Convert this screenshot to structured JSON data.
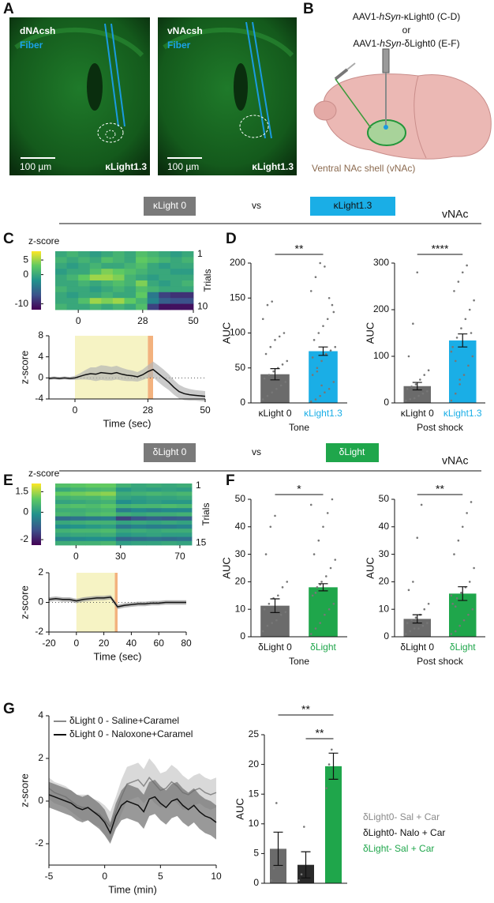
{
  "panel_labels": [
    "A",
    "B",
    "C",
    "D",
    "E",
    "F",
    "G"
  ],
  "panel_a": [
    {
      "region": "dNAcsh",
      "fiber": "Fiber",
      "scale_bar": "100 µm",
      "sensor": "κLight1.3"
    },
    {
      "region": "vNAcsh",
      "fiber": "Fiber",
      "scale_bar": "100 µm",
      "sensor": "κLight1.3"
    }
  ],
  "panel_b": {
    "virus_1": [
      "AAV1-",
      "hSyn",
      "-κLight0 (C-D)"
    ],
    "or": "or",
    "virus_2": [
      "AAV1-",
      "hSyn",
      "-δLight0 (E-F)"
    ],
    "target": "Ventral NAc shell (vNAc)"
  },
  "comparisons": [
    {
      "control": "κLight 0",
      "vs": "vs",
      "sensor": "κLight1.3",
      "region": "vNAc"
    },
    {
      "control": "δLight 0",
      "vs": "vs",
      "sensor": "δLight",
      "region": "vNAc"
    }
  ],
  "chart_data": [
    {
      "type": "heatmap",
      "colorbar_label": "z-score",
      "clim": [
        -12,
        8
      ],
      "cticks": [
        5,
        0,
        -10
      ],
      "xlim": [
        -10,
        50
      ],
      "xticks": [
        0,
        28,
        50
      ],
      "ylim": [
        1,
        10
      ],
      "yticks": [
        1,
        10
      ],
      "ylabel": "Trials",
      "values": [
        [
          0,
          1,
          0,
          -1,
          0,
          1,
          0,
          2,
          1,
          0,
          -1,
          0
        ],
        [
          1,
          0,
          1,
          0,
          2,
          1,
          0,
          3,
          2,
          1,
          0,
          1
        ],
        [
          0,
          -1,
          0,
          1,
          0,
          0,
          1,
          2,
          0,
          -1,
          0,
          0
        ],
        [
          -1,
          0,
          0,
          2,
          4,
          3,
          2,
          1,
          0,
          0,
          -1,
          -1
        ],
        [
          0,
          1,
          3,
          5,
          5,
          4,
          1,
          0,
          -1,
          0,
          0,
          0
        ],
        [
          0,
          0,
          1,
          0,
          1,
          2,
          1,
          4,
          0,
          -1,
          0,
          1
        ],
        [
          1,
          0,
          0,
          -1,
          0,
          1,
          0,
          2,
          1,
          0,
          0,
          0
        ],
        [
          0,
          -1,
          0,
          0,
          1,
          0,
          0,
          3,
          -4,
          -8,
          -9,
          -9
        ],
        [
          0,
          0,
          2,
          5,
          4,
          5,
          3,
          1,
          -3,
          -6,
          -7,
          -7
        ],
        [
          1,
          0,
          0,
          1,
          0,
          1,
          0,
          2,
          -8,
          -11,
          -11,
          -11
        ]
      ]
    },
    {
      "type": "line",
      "xlabel": "Time (sec)",
      "ylabel": "z-score",
      "xlim": [
        -10,
        50
      ],
      "xticks": [
        0,
        28,
        50
      ],
      "ylim": [
        -4,
        8
      ],
      "yticks": [
        -4,
        0,
        4,
        8
      ],
      "zero_line": true,
      "spans": [
        {
          "range": [
            0,
            28
          ],
          "color": "#f6f3c4"
        },
        {
          "range": [
            28,
            30
          ],
          "color": "#f3b27e"
        }
      ],
      "x": [
        -10,
        -8,
        -6,
        -4,
        -2,
        0,
        2,
        4,
        6,
        8,
        10,
        12,
        14,
        16,
        18,
        20,
        22,
        24,
        26,
        28,
        30,
        32,
        34,
        36,
        38,
        40,
        42,
        44,
        46,
        48,
        50
      ],
      "series": [
        {
          "color": "#111111",
          "band_color": "#b5b5b5",
          "values": [
            -0.1,
            0,
            -0.1,
            0,
            -0.1,
            0,
            0.3,
            0.6,
            0.8,
            0.7,
            1.0,
            0.9,
            0.8,
            1.0,
            0.7,
            0.5,
            0.4,
            0.2,
            0.6,
            1.2,
            1.6,
            0.8,
            0.0,
            -0.8,
            -1.8,
            -2.6,
            -3.0,
            -3.2,
            -3.3,
            -3.4,
            -3.5
          ],
          "errors": [
            0.3,
            0.3,
            0.3,
            0.3,
            0.3,
            0.4,
            0.6,
            0.9,
            1.2,
            1.3,
            1.4,
            1.4,
            1.3,
            1.3,
            1.2,
            1.1,
            1.0,
            0.9,
            1.0,
            1.2,
            1.5,
            1.6,
            1.6,
            1.5,
            1.4,
            1.3,
            1.2,
            1.1,
            1.0,
            1.0,
            1.0
          ]
        }
      ]
    },
    {
      "type": "bar",
      "ylabel": "AUC",
      "xlabel": "Tone",
      "ylim": [
        0,
        200
      ],
      "yticks": [
        0,
        50,
        100,
        150,
        200
      ],
      "categories": [
        "κLight 0",
        "κLight1.3"
      ],
      "category_colors": [
        "#111111",
        "#1aaee6"
      ],
      "colors": [
        "#6b6b6b",
        "#1aaee6"
      ],
      "values": [
        41,
        74
      ],
      "errors": [
        8,
        6
      ],
      "points": [
        [
          5,
          10,
          15,
          20,
          25,
          30,
          35,
          40,
          45,
          50,
          55,
          60,
          70,
          80,
          90,
          95,
          100,
          120,
          140,
          145
        ],
        [
          2,
          5,
          10,
          15,
          20,
          30,
          40,
          50,
          60,
          70,
          75,
          80,
          90,
          100,
          110,
          120,
          140,
          160,
          180,
          200,
          195,
          150,
          130,
          65,
          45,
          25
        ]
      ],
      "significance": [
        {
          "from": 0,
          "to": 1,
          "label": "**"
        }
      ]
    },
    {
      "type": "bar",
      "ylabel": "AUC",
      "xlabel": "Post shock",
      "ylim": [
        0,
        300
      ],
      "yticks": [
        0,
        100,
        200,
        300
      ],
      "categories": [
        "κLight 0",
        "κLight1.3"
      ],
      "category_colors": [
        "#111111",
        "#1aaee6"
      ],
      "colors": [
        "#6b6b6b",
        "#1aaee6"
      ],
      "values": [
        36,
        134
      ],
      "errors": [
        8,
        14
      ],
      "points": [
        [
          5,
          8,
          10,
          15,
          20,
          25,
          30,
          35,
          40,
          50,
          60,
          70,
          100,
          170,
          280
        ],
        [
          5,
          20,
          40,
          60,
          80,
          100,
          120,
          140,
          160,
          180,
          200,
          220,
          240,
          260,
          280,
          295,
          150,
          110,
          90,
          50
        ]
      ],
      "significance": [
        {
          "from": 0,
          "to": 1,
          "label": "****"
        }
      ]
    },
    {
      "type": "heatmap",
      "colorbar_label": "z-score",
      "clim": [
        -2.4,
        2.1
      ],
      "cticks": [
        1.5,
        0,
        -2
      ],
      "xlim": [
        -14,
        78
      ],
      "xticks": [
        0,
        30,
        70
      ],
      "ylim": [
        1,
        15
      ],
      "yticks": [
        1,
        15
      ],
      "ylabel": "Trials",
      "values": [
        [
          0.8,
          0.9,
          1.0,
          1.0,
          0.5,
          0.3,
          0.4,
          0.3,
          0.4
        ],
        [
          0.3,
          0.5,
          0.6,
          0.7,
          0.0,
          0.2,
          0.1,
          0.2,
          0.1
        ],
        [
          1.0,
          1.1,
          1.2,
          1.3,
          0.4,
          0.5,
          0.6,
          0.5,
          0.6
        ],
        [
          0.5,
          0.6,
          0.6,
          0.8,
          0.2,
          0.1,
          0.2,
          0.2,
          0.3
        ],
        [
          0.2,
          0.3,
          0.4,
          0.5,
          -0.2,
          0.0,
          0.1,
          0.0,
          0.0
        ],
        [
          0.7,
          0.8,
          0.7,
          0.9,
          0.5,
          0.6,
          0.6,
          0.7,
          0.6
        ],
        [
          0.4,
          0.4,
          0.5,
          0.6,
          -0.5,
          -0.3,
          -0.4,
          -0.3,
          -0.3
        ],
        [
          0.6,
          0.5,
          0.7,
          0.8,
          0.4,
          0.3,
          0.4,
          0.4,
          0.5
        ],
        [
          -0.8,
          -0.7,
          -0.6,
          -0.5,
          -1.5,
          -1.2,
          -1.0,
          -1.1,
          -1.0
        ],
        [
          0.3,
          0.4,
          0.5,
          0.5,
          0.2,
          0.3,
          0.2,
          0.3,
          0.2
        ],
        [
          -0.2,
          -0.1,
          0.0,
          0.1,
          -0.6,
          -0.4,
          -0.5,
          -0.5,
          -0.4
        ],
        [
          0.5,
          0.6,
          0.6,
          0.7,
          0.3,
          0.4,
          0.3,
          0.4,
          0.4
        ],
        [
          0.2,
          0.3,
          0.3,
          0.4,
          0.0,
          0.1,
          0.2,
          0.1,
          0.1
        ],
        [
          -0.4,
          -0.3,
          -0.2,
          -0.2,
          -0.9,
          -0.8,
          -0.7,
          -0.8,
          -0.7
        ],
        [
          0.4,
          0.5,
          0.5,
          0.6,
          0.1,
          0.2,
          0.2,
          0.3,
          0.2
        ]
      ]
    },
    {
      "type": "line",
      "xlabel": "Time (sec)",
      "ylabel": "z-score",
      "xlim": [
        -20,
        80
      ],
      "xticks": [
        -20,
        0,
        20,
        40,
        60,
        80
      ],
      "ylim": [
        -2,
        2
      ],
      "yticks": [
        -2,
        0,
        2
      ],
      "zero_line": true,
      "spans": [
        {
          "range": [
            0,
            28
          ],
          "color": "#f6f3c4"
        },
        {
          "range": [
            28,
            30
          ],
          "color": "#f3b27e"
        }
      ],
      "x": [
        -20,
        -15,
        -10,
        -5,
        0,
        5,
        10,
        15,
        20,
        25,
        30,
        35,
        40,
        45,
        50,
        55,
        60,
        65,
        70,
        75,
        80
      ],
      "series": [
        {
          "color": "#111111",
          "band_color": "#9a9a9a",
          "values": [
            0.2,
            0.25,
            0.2,
            0.2,
            0.1,
            0.2,
            0.25,
            0.3,
            0.3,
            0.35,
            -0.3,
            -0.2,
            -0.15,
            -0.1,
            -0.1,
            -0.05,
            -0.05,
            0,
            0,
            0,
            0
          ],
          "errors": [
            0.15,
            0.15,
            0.15,
            0.15,
            0.15,
            0.15,
            0.15,
            0.15,
            0.15,
            0.15,
            0.15,
            0.15,
            0.15,
            0.15,
            0.15,
            0.15,
            0.15,
            0.15,
            0.15,
            0.15,
            0.15
          ]
        }
      ]
    },
    {
      "type": "bar",
      "ylabel": "AUC",
      "xlabel": "Tone",
      "ylim": [
        0,
        50
      ],
      "yticks": [
        0,
        10,
        20,
        30,
        40,
        50
      ],
      "categories": [
        "δLight 0",
        "δLight"
      ],
      "category_colors": [
        "#111111",
        "#1fa64b"
      ],
      "colors": [
        "#6b6b6b",
        "#1fa64b"
      ],
      "values": [
        11.3,
        18
      ],
      "errors": [
        2.5,
        1.3
      ],
      "points": [
        [
          2,
          4,
          5,
          6,
          8,
          9,
          10,
          12,
          14,
          15,
          18,
          20,
          30,
          40,
          44
        ],
        [
          1,
          3,
          5,
          8,
          10,
          12,
          15,
          18,
          20,
          22,
          25,
          28,
          30,
          35,
          40,
          45,
          50,
          48,
          16,
          19
        ]
      ],
      "significance": [
        {
          "from": 0,
          "to": 1,
          "label": "*"
        }
      ]
    },
    {
      "type": "bar",
      "ylabel": "AUC",
      "xlabel": "Post shock",
      "ylim": [
        0,
        50
      ],
      "yticks": [
        0,
        10,
        20,
        30,
        40,
        50
      ],
      "categories": [
        "δLight 0",
        "δLight"
      ],
      "category_colors": [
        "#111111",
        "#1fa64b"
      ],
      "colors": [
        "#6b6b6b",
        "#1fa64b"
      ],
      "values": [
        6.5,
        15.7
      ],
      "errors": [
        1.5,
        2.5
      ],
      "points": [
        [
          1,
          2,
          3,
          3,
          4,
          5,
          5,
          6,
          7,
          8,
          10,
          12,
          17,
          20,
          36,
          48
        ],
        [
          1,
          2,
          4,
          6,
          8,
          10,
          12,
          14,
          16,
          18,
          20,
          25,
          30,
          35,
          40,
          45,
          49,
          15,
          11
        ]
      ],
      "significance": [
        {
          "from": 0,
          "to": 1,
          "label": "**"
        }
      ]
    },
    {
      "type": "line",
      "xlabel": "Time (min)",
      "ylabel": "z-score",
      "xlim": [
        -5,
        10
      ],
      "xticks": [
        -5,
        0,
        5,
        10
      ],
      "ylim": [
        -3,
        4
      ],
      "yticks": [
        -2,
        0,
        2,
        4
      ],
      "zero_line": false,
      "spans": [],
      "x": [
        -5,
        -4.5,
        -4,
        -3.5,
        -3,
        -2.5,
        -2,
        -1.5,
        -1,
        -0.5,
        0,
        0.5,
        1,
        1.5,
        2,
        2.5,
        3,
        3.5,
        4,
        4.5,
        5,
        5.5,
        6,
        6.5,
        7,
        7.5,
        8,
        8.5,
        9,
        9.5,
        10
      ],
      "series": [
        {
          "name": "δLight 0 - Saline+Caramel",
          "color": "#8a8a8a",
          "band_color": "#c9c9c9",
          "values": [
            0.6,
            0.4,
            0.3,
            0.2,
            0.0,
            -0.2,
            -0.3,
            -0.3,
            -0.5,
            -0.6,
            -0.9,
            -1.2,
            -0.5,
            0.2,
            0.8,
            0.9,
            1.0,
            0.7,
            1.1,
            0.8,
            0.5,
            0.6,
            0.9,
            0.7,
            0.4,
            0.3,
            0.5,
            0.6,
            0.4,
            0.3,
            0.4
          ],
          "errors": [
            0.5,
            0.5,
            0.5,
            0.5,
            0.5,
            0.5,
            0.6,
            0.6,
            0.6,
            0.6,
            0.7,
            0.7,
            0.7,
            0.8,
            0.8,
            0.8,
            0.8,
            0.8,
            0.9,
            0.9,
            0.8,
            0.8,
            0.8,
            0.8,
            0.8,
            0.7,
            0.7,
            0.7,
            0.7,
            0.7,
            0.7
          ]
        },
        {
          "name": "δLight 0 - Naloxone+Caramel",
          "color": "#111111",
          "band_color": "#6e6e6e",
          "values": [
            0.3,
            0.2,
            0.1,
            0.0,
            -0.1,
            -0.3,
            -0.4,
            -0.3,
            -0.5,
            -0.7,
            -1.0,
            -1.5,
            -0.7,
            -0.2,
            0.0,
            -0.1,
            -0.2,
            -0.5,
            0.1,
            0.2,
            -0.1,
            -0.3,
            0.0,
            0.1,
            -0.2,
            -0.4,
            -0.2,
            -0.5,
            -0.7,
            -0.8,
            -1.0
          ],
          "errors": [
            0.6,
            0.6,
            0.6,
            0.6,
            0.6,
            0.6,
            0.6,
            0.6,
            0.6,
            0.6,
            0.6,
            0.5,
            0.6,
            0.7,
            0.8,
            0.8,
            0.8,
            0.8,
            0.8,
            0.8,
            0.8,
            0.8,
            0.8,
            0.8,
            0.8,
            0.8,
            0.8,
            0.8,
            0.8,
            0.8,
            0.8
          ]
        }
      ]
    },
    {
      "type": "bar",
      "ylabel": "AUC",
      "ylim": [
        0,
        25
      ],
      "yticks": [
        0,
        5,
        10,
        15,
        20,
        25
      ],
      "category_legend": true,
      "categories": [
        "δLight0- Sal + Car",
        "δLight0- Nalo + Car",
        "δLight- Sal + Car"
      ],
      "category_colors": [
        "#8a8a8a",
        "#111111",
        "#1fa64b"
      ],
      "colors": [
        "#6b6b6b",
        "#2a2a2a",
        "#1fa64b"
      ],
      "values": [
        5.8,
        3.1,
        19.7
      ],
      "errors": [
        2.8,
        2.2,
        2.2
      ],
      "points": [
        [
          0.5,
          2.5,
          13.5
        ],
        [
          0.5,
          1.5,
          9.5
        ],
        [
          16,
          20,
          22.5
        ]
      ],
      "significance": [
        {
          "from": 0,
          "to": 2,
          "label": "**"
        },
        {
          "from": 1,
          "to": 2,
          "label": "**"
        }
      ]
    }
  ]
}
